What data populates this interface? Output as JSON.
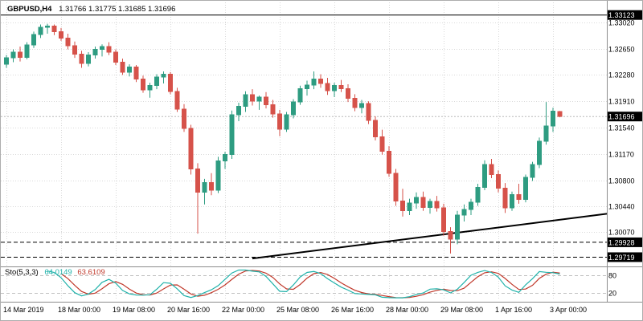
{
  "header": {
    "symbol_period": "GBPUSD,H4",
    "ohlc": "1.31766 1.31775 1.31685 1.31696"
  },
  "colors": {
    "background": "#ffffff",
    "grid": "#d9d9d9",
    "candle_up": "#2e9c81",
    "candle_down": "#d6524a",
    "trend_line": "#000000",
    "price_line": "#000000",
    "bid_line": "#b8b8b8",
    "label_box_bg": "#000000",
    "label_box_text": "#ffffff",
    "axis_text": "#000000",
    "separator": "#8c8c8c",
    "sto_main": "#20b2aa",
    "sto_signal": "#c0392b",
    "sto_level": "#c0c0c0"
  },
  "chart_data": {
    "type": "candlestick",
    "symbol": "GBPUSD",
    "timeframe": "H4",
    "price_range": {
      "top": 1.333,
      "bottom": 1.296
    },
    "bars_total": 88,
    "y_ticks": [
      "1.33020",
      "1.32650",
      "1.32280",
      "1.31910",
      "1.31540",
      "1.31170",
      "1.30800",
      "1.30440",
      "1.30070"
    ],
    "x_labels": [
      {
        "bar": 0,
        "text": "14 Mar 2019"
      },
      {
        "bar": 8,
        "text": "18 Mar 00:00"
      },
      {
        "bar": 16,
        "text": "19 Mar 08:00"
      },
      {
        "bar": 24,
        "text": "20 Mar 16:00"
      },
      {
        "bar": 32,
        "text": "22 Mar 00:00"
      },
      {
        "bar": 40,
        "text": "25 Mar 08:00"
      },
      {
        "bar": 48,
        "text": "26 Mar 16:00"
      },
      {
        "bar": 56,
        "text": "28 Mar 00:00"
      },
      {
        "bar": 64,
        "text": "29 Mar 08:00"
      },
      {
        "bar": 72,
        "text": "1 Apr 16:00"
      },
      {
        "bar": 80,
        "text": "3 Apr 00:00"
      }
    ],
    "candles": [
      [
        1.3243,
        1.3256,
        1.3238,
        1.3252
      ],
      [
        1.3252,
        1.3264,
        1.3246,
        1.326
      ],
      [
        1.326,
        1.3268,
        1.3247,
        1.3253
      ],
      [
        1.3253,
        1.3274,
        1.325,
        1.327
      ],
      [
        1.327,
        1.3289,
        1.3266,
        1.3285
      ],
      [
        1.3285,
        1.3299,
        1.328,
        1.3295
      ],
      [
        1.3295,
        1.33,
        1.3286,
        1.3297
      ],
      [
        1.3297,
        1.3299,
        1.3284,
        1.3289
      ],
      [
        1.3289,
        1.3294,
        1.3276,
        1.328
      ],
      [
        1.328,
        1.3286,
        1.3264,
        1.3269
      ],
      [
        1.3269,
        1.3275,
        1.3252,
        1.3257
      ],
      [
        1.3257,
        1.3262,
        1.3238,
        1.3244
      ],
      [
        1.3244,
        1.326,
        1.324,
        1.3256
      ],
      [
        1.3256,
        1.3268,
        1.3251,
        1.3264
      ],
      [
        1.3264,
        1.3271,
        1.3254,
        1.3268
      ],
      [
        1.3268,
        1.3274,
        1.3256,
        1.326
      ],
      [
        1.326,
        1.3264,
        1.3242,
        1.3246
      ],
      [
        1.3246,
        1.3251,
        1.3228,
        1.3232
      ],
      [
        1.3232,
        1.3243,
        1.3226,
        1.3239
      ],
      [
        1.3239,
        1.3242,
        1.3218,
        1.3222
      ],
      [
        1.3222,
        1.3227,
        1.3203,
        1.3207
      ],
      [
        1.3207,
        1.3217,
        1.3196,
        1.3213
      ],
      [
        1.3213,
        1.3229,
        1.3208,
        1.3225
      ],
      [
        1.3225,
        1.3233,
        1.3216,
        1.3229
      ],
      [
        1.3229,
        1.3232,
        1.3201,
        1.3205
      ],
      [
        1.3205,
        1.321,
        1.3176,
        1.318
      ],
      [
        1.318,
        1.3187,
        1.3148,
        1.3153
      ],
      [
        1.3153,
        1.3158,
        1.3088,
        1.3096
      ],
      [
        1.3096,
        1.3104,
        1.3005,
        1.3063
      ],
      [
        1.3063,
        1.3082,
        1.3046,
        1.3077
      ],
      [
        1.3077,
        1.309,
        1.3059,
        1.3066
      ],
      [
        1.3066,
        1.3113,
        1.3062,
        1.3107
      ],
      [
        1.3107,
        1.312,
        1.3096,
        1.3116
      ],
      [
        1.3116,
        1.3178,
        1.311,
        1.3172
      ],
      [
        1.3172,
        1.3189,
        1.3163,
        1.3184
      ],
      [
        1.3184,
        1.3205,
        1.3176,
        1.32
      ],
      [
        1.32,
        1.3208,
        1.3185,
        1.3191
      ],
      [
        1.3191,
        1.3199,
        1.3179,
        1.3197
      ],
      [
        1.3197,
        1.3204,
        1.3181,
        1.3186
      ],
      [
        1.3186,
        1.3193,
        1.3168,
        1.3173
      ],
      [
        1.3173,
        1.3179,
        1.3142,
        1.3152
      ],
      [
        1.3152,
        1.3176,
        1.3148,
        1.3172
      ],
      [
        1.3172,
        1.3194,
        1.3167,
        1.319
      ],
      [
        1.319,
        1.3213,
        1.3186,
        1.3209
      ],
      [
        1.3209,
        1.322,
        1.3199,
        1.3214
      ],
      [
        1.3214,
        1.3233,
        1.3208,
        1.3222
      ],
      [
        1.3222,
        1.3229,
        1.321,
        1.3216
      ],
      [
        1.3216,
        1.3224,
        1.32,
        1.3206
      ],
      [
        1.3206,
        1.3217,
        1.3197,
        1.3213
      ],
      [
        1.3213,
        1.3221,
        1.3204,
        1.3209
      ],
      [
        1.3209,
        1.3215,
        1.319,
        1.3195
      ],
      [
        1.3195,
        1.3201,
        1.3177,
        1.3182
      ],
      [
        1.3182,
        1.3193,
        1.3174,
        1.3188
      ],
      [
        1.3188,
        1.3191,
        1.3159,
        1.3164
      ],
      [
        1.3164,
        1.317,
        1.3136,
        1.3141
      ],
      [
        1.3141,
        1.3151,
        1.3116,
        1.3121
      ],
      [
        1.3121,
        1.3128,
        1.3085,
        1.309
      ],
      [
        1.309,
        1.3096,
        1.3044,
        1.3051
      ],
      [
        1.3051,
        1.3068,
        1.3029,
        1.3037
      ],
      [
        1.3037,
        1.3054,
        1.3031,
        1.3048
      ],
      [
        1.3048,
        1.3063,
        1.304,
        1.3056
      ],
      [
        1.3056,
        1.3064,
        1.3037,
        1.3042
      ],
      [
        1.3042,
        1.3054,
        1.3033,
        1.305
      ],
      [
        1.305,
        1.3058,
        1.3036,
        1.3041
      ],
      [
        1.3041,
        1.3047,
        1.3002,
        1.3008
      ],
      [
        1.3008,
        1.3014,
        1.2977,
        1.2997
      ],
      [
        1.2997,
        1.3037,
        1.299,
        1.3031
      ],
      [
        1.3031,
        1.3046,
        1.3022,
        1.3039
      ],
      [
        1.3039,
        1.3054,
        1.3031,
        1.3049
      ],
      [
        1.3049,
        1.3075,
        1.3044,
        1.307
      ],
      [
        1.307,
        1.3108,
        1.3066,
        1.3102
      ],
      [
        1.3102,
        1.311,
        1.3083,
        1.3088
      ],
      [
        1.3088,
        1.3094,
        1.3063,
        1.3069
      ],
      [
        1.3069,
        1.3076,
        1.3034,
        1.3041
      ],
      [
        1.3041,
        1.3064,
        1.3037,
        1.306
      ],
      [
        1.306,
        1.3075,
        1.3047,
        1.3053
      ],
      [
        1.3053,
        1.3088,
        1.3049,
        1.3084
      ],
      [
        1.3084,
        1.3106,
        1.3079,
        1.3102
      ],
      [
        1.3102,
        1.314,
        1.3097,
        1.3135
      ],
      [
        1.3135,
        1.319,
        1.313,
        1.3156
      ],
      [
        1.3156,
        1.3182,
        1.3148,
        1.3177
      ],
      [
        1.31766,
        1.31775,
        1.31685,
        1.31696
      ]
    ],
    "price_lines": [
      {
        "price": 1.33123,
        "label": "1.33123",
        "style": "solid"
      },
      {
        "price": 1.29928,
        "label": "1.29928",
        "style": "dashed"
      },
      {
        "price": 1.29719,
        "label": "1.29719",
        "style": "dashed"
      }
    ],
    "current_price": {
      "value": 1.31696,
      "label": "1.31696"
    },
    "trend_line": {
      "from": {
        "bar": 36,
        "price": 1.297
      },
      "to": {
        "bar": 88,
        "price": 1.3033
      }
    },
    "indicator": {
      "type": "stochastic",
      "name_label": "Sto(5,3,3)",
      "main_value": "64.0149",
      "signal_value": "63.6109",
      "k_period": 5,
      "d_period": 3,
      "slowing": 3,
      "range": [
        0,
        100
      ],
      "levels": [
        {
          "value": 80,
          "label": "80"
        },
        {
          "value": 20,
          "label": "20"
        }
      ]
    }
  }
}
